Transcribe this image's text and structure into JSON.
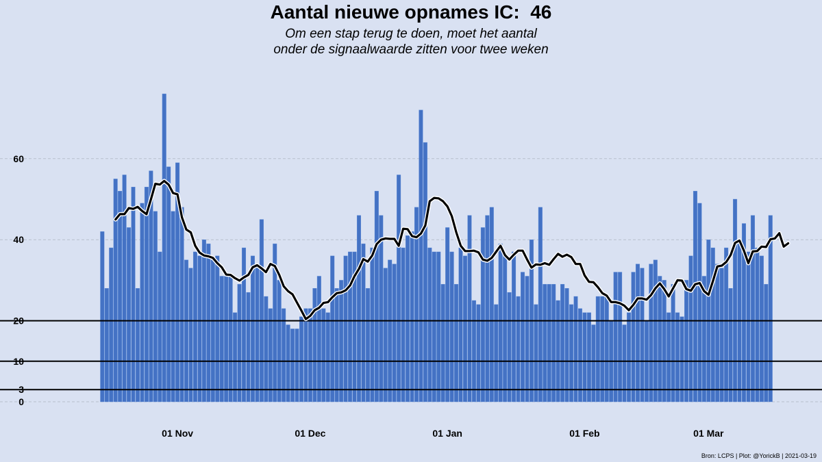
{
  "chart_data": {
    "type": "bar",
    "title": "Aantal nieuwe opnames IC:  46",
    "subtitle": [
      "Om een stap terug te doen, moet het aantal",
      "onder de signaalwaarde zitten voor twee weken"
    ],
    "start_date": "2020-10-15",
    "values": [
      42,
      28,
      38,
      55,
      52,
      56,
      43,
      53,
      28,
      49,
      53,
      57,
      47,
      37,
      76,
      58,
      47,
      59,
      48,
      35,
      33,
      37,
      36,
      40,
      39,
      35,
      36,
      31,
      31,
      31,
      22,
      29,
      38,
      27,
      36,
      34,
      45,
      26,
      23,
      39,
      30,
      23,
      19,
      18,
      18,
      21,
      23,
      23,
      28,
      31,
      23,
      22,
      36,
      28,
      30,
      36,
      37,
      37,
      46,
      39,
      28,
      38,
      52,
      46,
      33,
      35,
      34,
      56,
      38,
      41,
      42,
      48,
      72,
      64,
      38,
      37,
      37,
      29,
      43,
      37,
      29,
      38,
      36,
      46,
      25,
      24,
      43,
      46,
      48,
      24,
      39,
      36,
      27,
      37,
      26,
      32,
      31,
      40,
      24,
      48,
      29,
      29,
      29,
      25,
      29,
      28,
      24,
      26,
      23,
      22,
      22,
      19,
      26,
      26,
      26,
      20,
      32,
      32,
      19,
      22,
      32,
      34,
      33,
      20,
      34,
      35,
      31,
      30,
      22,
      29,
      22,
      21,
      30,
      36,
      52,
      49,
      31,
      40,
      38,
      34,
      33,
      38,
      28,
      50,
      40,
      44,
      37,
      46,
      38,
      36,
      29,
      46
    ],
    "moving_average": [
      [
        "2020-10-18",
        45
      ],
      [
        "2020-10-19",
        46.3
      ],
      [
        "2020-10-20",
        46.3
      ],
      [
        "2020-10-21",
        47.8
      ],
      [
        "2020-10-22",
        47.6
      ],
      [
        "2020-10-23",
        48.1
      ],
      [
        "2020-10-24",
        47.1
      ],
      [
        "2020-10-25",
        46.3
      ],
      [
        "2020-10-26",
        50
      ],
      [
        "2020-10-27",
        53.8
      ],
      [
        "2020-10-28",
        53.6
      ],
      [
        "2020-10-29",
        54.5
      ],
      [
        "2020-10-30",
        53.6
      ],
      [
        "2020-10-31",
        51.5
      ],
      [
        "2020-11-01",
        51.2
      ],
      [
        "2020-11-02",
        45.5
      ],
      [
        "2020-11-03",
        42.5
      ],
      [
        "2020-11-04",
        41.8
      ],
      [
        "2020-11-05",
        38.5
      ],
      [
        "2020-11-06",
        36.8
      ],
      [
        "2020-11-07",
        36.1
      ],
      [
        "2020-11-08",
        35.9
      ],
      [
        "2020-11-09",
        35.5
      ],
      [
        "2020-11-10",
        34.2
      ],
      [
        "2020-11-11",
        33.2
      ],
      [
        "2020-11-12",
        31.4
      ],
      [
        "2020-11-13",
        31.3
      ],
      [
        "2020-11-14",
        30.5
      ],
      [
        "2020-11-15",
        29.9
      ],
      [
        "2020-11-16",
        30.7
      ],
      [
        "2020-11-17",
        31.3
      ],
      [
        "2020-11-18",
        33.2
      ],
      [
        "2020-11-19",
        33.7
      ],
      [
        "2020-11-20",
        32.9
      ],
      [
        "2020-11-21",
        32
      ],
      [
        "2020-11-22",
        34
      ],
      [
        "2020-11-23",
        33.5
      ],
      [
        "2020-11-24",
        31.3
      ],
      [
        "2020-11-25",
        28.5
      ],
      [
        "2020-11-26",
        27.3
      ],
      [
        "2020-11-27",
        26.5
      ],
      [
        "2020-11-28",
        24.5
      ],
      [
        "2020-11-29",
        22.5
      ],
      [
        "2020-11-30",
        20.4
      ],
      [
        "2020-12-01",
        21.2
      ],
      [
        "2020-12-02",
        22.6
      ],
      [
        "2020-12-03",
        23.2
      ],
      [
        "2020-12-04",
        24.4
      ],
      [
        "2020-12-05",
        24.6
      ],
      [
        "2020-12-06",
        25.8
      ],
      [
        "2020-12-07",
        26.8
      ],
      [
        "2020-12-08",
        27
      ],
      [
        "2020-12-09",
        27.5
      ],
      [
        "2020-12-10",
        28.7
      ],
      [
        "2020-12-11",
        31
      ],
      [
        "2020-12-12",
        32.8
      ],
      [
        "2020-12-13",
        35.2
      ],
      [
        "2020-12-14",
        34.6
      ],
      [
        "2020-12-15",
        36.1
      ],
      [
        "2020-12-16",
        38.9
      ],
      [
        "2020-12-17",
        40
      ],
      [
        "2020-12-18",
        40.3
      ],
      [
        "2020-12-19",
        40.2
      ],
      [
        "2020-12-20",
        40.2
      ],
      [
        "2020-12-21",
        38.5
      ],
      [
        "2020-12-22",
        42.7
      ],
      [
        "2020-12-23",
        42.6
      ],
      [
        "2020-12-24",
        40.9
      ],
      [
        "2020-12-25",
        40.6
      ],
      [
        "2020-12-26",
        41.5
      ],
      [
        "2020-12-27",
        43.5
      ],
      [
        "2020-12-28",
        49.5
      ],
      [
        "2020-12-29",
        50.3
      ],
      [
        "2020-12-30",
        50.2
      ],
      [
        "2020-12-31",
        49.5
      ],
      [
        "2021-01-01",
        48.2
      ],
      [
        "2021-01-02",
        45.8
      ],
      [
        "2021-01-03",
        41.8
      ],
      [
        "2021-01-04",
        38.5
      ],
      [
        "2021-01-05",
        37.2
      ],
      [
        "2021-01-06",
        37.2
      ],
      [
        "2021-01-07",
        37.3
      ],
      [
        "2021-01-08",
        36.9
      ],
      [
        "2021-01-09",
        35.1
      ],
      [
        "2021-01-10",
        34.8
      ],
      [
        "2021-01-11",
        35.5
      ],
      [
        "2021-01-12",
        37
      ],
      [
        "2021-01-13",
        38.5
      ],
      [
        "2021-01-14",
        36.2
      ],
      [
        "2021-01-15",
        35.1
      ],
      [
        "2021-01-16",
        36.3
      ],
      [
        "2021-01-17",
        37.3
      ],
      [
        "2021-01-18",
        37.3
      ],
      [
        "2021-01-19",
        35.1
      ],
      [
        "2021-01-20",
        33.1
      ],
      [
        "2021-01-21",
        33.9
      ],
      [
        "2021-01-22",
        33.8
      ],
      [
        "2021-01-23",
        34.2
      ],
      [
        "2021-01-24",
        33.8
      ],
      [
        "2021-01-25",
        35.2
      ],
      [
        "2021-01-26",
        36.5
      ],
      [
        "2021-01-27",
        35.8
      ],
      [
        "2021-01-28",
        36.3
      ],
      [
        "2021-01-29",
        35.7
      ],
      [
        "2021-01-30",
        34
      ],
      [
        "2021-01-31",
        34
      ],
      [
        "2021-02-01",
        31.2
      ],
      [
        "2021-02-02",
        29.6
      ],
      [
        "2021-02-03",
        29.5
      ],
      [
        "2021-02-04",
        28.3
      ],
      [
        "2021-02-05",
        26.8
      ],
      [
        "2021-02-06",
        26.2
      ],
      [
        "2021-02-07",
        24.6
      ],
      [
        "2021-02-08",
        24.6
      ],
      [
        "2021-02-09",
        24.3
      ],
      [
        "2021-02-10",
        23.7
      ],
      [
        "2021-02-11",
        22.6
      ],
      [
        "2021-02-12",
        23.9
      ],
      [
        "2021-02-13",
        25.5
      ],
      [
        "2021-02-14",
        25.5
      ],
      [
        "2021-02-15",
        25.2
      ],
      [
        "2021-02-16",
        26.3
      ],
      [
        "2021-02-17",
        28
      ],
      [
        "2021-02-18",
        29.2
      ],
      [
        "2021-02-19",
        27.8
      ],
      [
        "2021-02-20",
        26
      ],
      [
        "2021-02-21",
        28
      ],
      [
        "2021-02-22",
        30
      ],
      [
        "2021-02-23",
        29.9
      ],
      [
        "2021-02-24",
        27.8
      ],
      [
        "2021-02-25",
        27.4
      ],
      [
        "2021-02-26",
        29
      ],
      [
        "2021-02-27",
        29.3
      ],
      [
        "2021-02-28",
        27.3
      ],
      [
        "2021-03-01",
        26.4
      ],
      [
        "2021-03-02",
        29.8
      ],
      [
        "2021-03-03",
        33.4
      ],
      [
        "2021-03-04",
        33.6
      ],
      [
        "2021-03-05",
        34.5
      ],
      [
        "2021-03-06",
        36.2
      ],
      [
        "2021-03-07",
        39.2
      ],
      [
        "2021-03-08",
        39.8
      ],
      [
        "2021-03-09",
        37.3
      ],
      [
        "2021-03-10",
        34.2
      ],
      [
        "2021-03-11",
        37.1
      ],
      [
        "2021-03-12",
        37.2
      ],
      [
        "2021-03-13",
        38.3
      ],
      [
        "2021-03-14",
        38.2
      ],
      [
        "2021-03-15",
        40.1
      ],
      [
        "2021-03-16",
        40.3
      ],
      [
        "2021-03-17",
        41.6
      ],
      [
        "2021-03-18",
        38.3
      ],
      [
        "2021-03-19",
        39.1
      ]
    ],
    "y_ticks": [
      0,
      3,
      10,
      20,
      40,
      60
    ],
    "x_ticks": [
      {
        "date": "2020-11-01",
        "label": "01 Nov"
      },
      {
        "date": "2020-12-01",
        "label": "01 Dec"
      },
      {
        "date": "2021-01-01",
        "label": "01 Jan"
      },
      {
        "date": "2021-02-01",
        "label": "01 Feb"
      },
      {
        "date": "2021-03-01",
        "label": "01 Mar"
      }
    ],
    "threshold_lines": [
      3,
      10,
      20
    ],
    "ylim": [
      0,
      77
    ],
    "grid": "dashed horizontal",
    "colors": {
      "bar": "#4472c4",
      "bar_edge": "#5b8bd8",
      "line": "#000000",
      "background": "#d9e1f2",
      "grid": "#b8bfcc"
    }
  },
  "caption": "Bron: LCPS | Plot: @YorickB |  2021-03-19"
}
